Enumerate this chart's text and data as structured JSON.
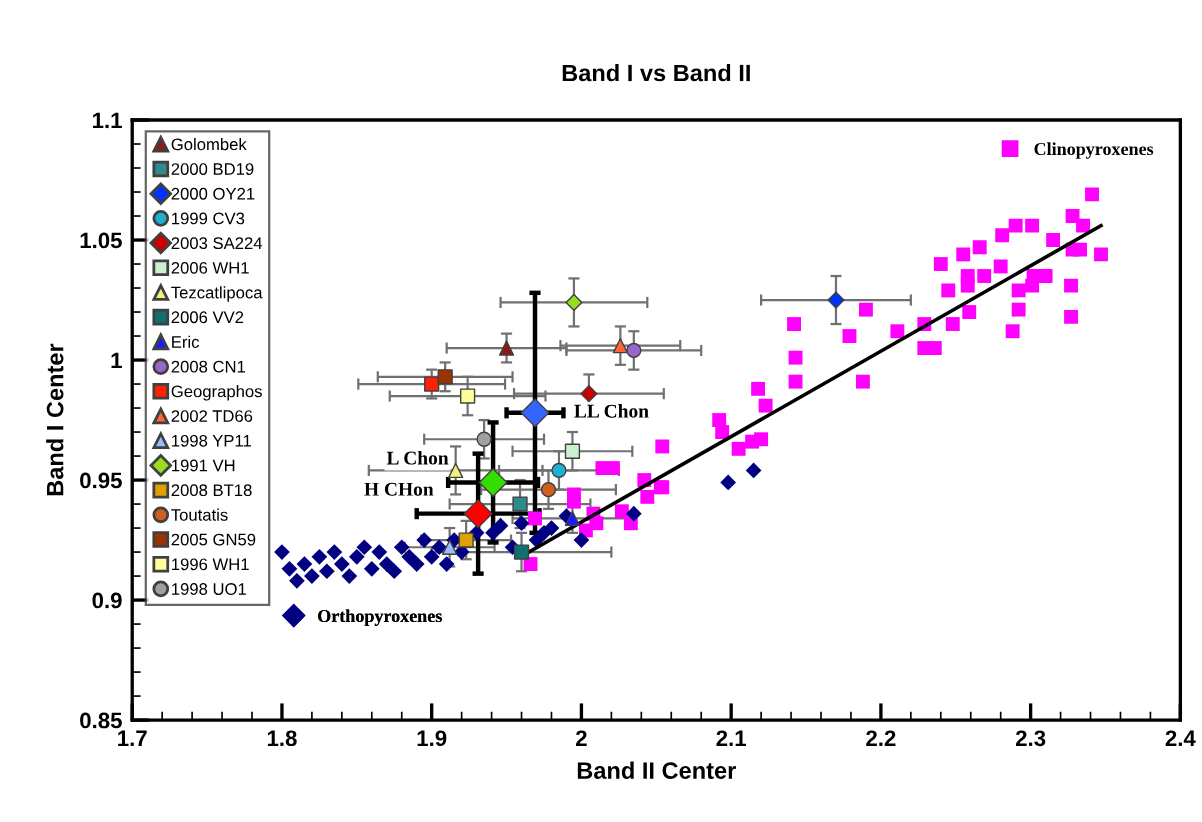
{
  "chart_data": {
    "type": "scatter",
    "title": "Band I vs Band II",
    "xlabel": "Band II Center",
    "ylabel": "Band I Center",
    "xlim": [
      1.7,
      2.4
    ],
    "xticks": [
      1.7,
      1.8,
      1.9,
      2,
      2.1,
      2.2,
      2.3,
      2.4
    ],
    "ylim": [
      0.85,
      1.1
    ],
    "yticks": [
      0.85,
      0.9,
      0.95,
      1,
      1.05,
      1.1
    ],
    "legend": "top left",
    "series": [
      {
        "name": "Golombek",
        "color": "#8b1a1a",
        "marker": "triangle",
        "x": [
          1.95
        ],
        "values": [
          1.005
        ],
        "xerrors": [
          0.04
        ],
        "errors": [
          0.006
        ]
      },
      {
        "name": "2000 BD19",
        "color": "#2e8b8b",
        "marker": "square",
        "x": [
          1.959
        ],
        "values": [
          0.94
        ],
        "xerrors": [
          0.047
        ],
        "errors": [
          0.01
        ]
      },
      {
        "name": "2000 OY21",
        "color": "#0033ff",
        "marker": "diamond",
        "x": [
          2.17
        ],
        "values": [
          1.025
        ],
        "xerrors": [
          0.05
        ],
        "errors": [
          0.01
        ]
      },
      {
        "name": "1999 CV3",
        "color": "#20b0d0",
        "marker": "circle",
        "x": [
          1.985
        ],
        "values": [
          0.954
        ],
        "xerrors": [
          0.04
        ],
        "errors": [
          0.008
        ]
      },
      {
        "name": "2003 SA224",
        "color": "#cc0000",
        "marker": "diamond",
        "x": [
          2.005
        ],
        "values": [
          0.986
        ],
        "xerrors": [
          0.05
        ],
        "errors": [
          0.008
        ]
      },
      {
        "name": "2006 WH1",
        "color": "#ccf0cc",
        "marker": "square",
        "x": [
          1.994
        ],
        "values": [
          0.962
        ],
        "xerrors": [
          0.04
        ],
        "errors": [
          0.008
        ]
      },
      {
        "name": "Tezcatlipoca",
        "color": "#f0f080",
        "marker": "triangle",
        "x": [
          1.916
        ],
        "values": [
          0.954
        ],
        "xerrors": [
          0.058
        ],
        "errors": [
          0.01
        ]
      },
      {
        "name": "2006 VV2",
        "color": "#107070",
        "marker": "square",
        "x": [
          1.96
        ],
        "values": [
          0.92
        ],
        "xerrors": [
          0.06
        ],
        "errors": [
          0.008
        ]
      },
      {
        "name": "Eric",
        "color": "#1a1aff",
        "marker": "triangle",
        "x": [
          1.994
        ],
        "values": [
          0.934
        ],
        "xerrors": [
          0.04
        ],
        "errors": [
          0.006
        ]
      },
      {
        "name": "2008 CN1",
        "color": "#9966cc",
        "marker": "circle",
        "x": [
          2.035
        ],
        "values": [
          1.004
        ],
        "xerrors": [
          0.045
        ],
        "errors": [
          0.008
        ]
      },
      {
        "name": "Geographos",
        "color": "#ff2200",
        "marker": "square",
        "x": [
          1.9
        ],
        "values": [
          0.99
        ],
        "xerrors": [
          0.049
        ],
        "errors": [
          0.006
        ]
      },
      {
        "name": "2002 TD66",
        "color": "#ff6633",
        "marker": "triangle",
        "x": [
          2.026
        ],
        "values": [
          1.006
        ],
        "xerrors": [
          0.04
        ],
        "errors": [
          0.008
        ]
      },
      {
        "name": "1998 YP11",
        "color": "#99bbff",
        "marker": "triangle",
        "x": [
          1.912
        ],
        "values": [
          0.922
        ],
        "xerrors": [
          0.03
        ],
        "errors": [
          0.008
        ]
      },
      {
        "name": "1991 VH",
        "color": "#99dd22",
        "marker": "diamond",
        "x": [
          1.995
        ],
        "values": [
          1.024
        ],
        "xerrors": [
          0.049
        ],
        "errors": [
          0.01
        ]
      },
      {
        "name": "2008 BT18",
        "color": "#e0a000",
        "marker": "square",
        "x": [
          1.923
        ],
        "values": [
          0.925
        ],
        "xerrors": [
          0.03
        ],
        "errors": [
          0.008
        ]
      },
      {
        "name": "Toutatis",
        "color": "#d06020",
        "marker": "circle",
        "x": [
          1.978
        ],
        "values": [
          0.946
        ],
        "xerrors": [
          0.045
        ],
        "errors": [
          0.008
        ]
      },
      {
        "name": "2005 GN59",
        "color": "#993300",
        "marker": "square",
        "x": [
          1.909
        ],
        "values": [
          0.993
        ],
        "xerrors": [
          0.045
        ],
        "errors": [
          0.006
        ]
      },
      {
        "name": "1996 WH1",
        "color": "#ffff99",
        "marker": "square",
        "x": [
          1.924
        ],
        "values": [
          0.985
        ],
        "xerrors": [
          0.052
        ],
        "errors": [
          0.008
        ]
      },
      {
        "name": "1998 UO1",
        "color": "#a0a0a0",
        "marker": "circle",
        "x": [
          1.935
        ],
        "values": [
          0.967
        ],
        "xerrors": [
          0.04
        ],
        "errors": [
          0.008
        ]
      },
      {
        "name": "Clinopyroxenes",
        "color": "#ff00ff",
        "marker": "square",
        "x": [
          2.341,
          2.328,
          2.335,
          2.29,
          2.301,
          2.281,
          2.315,
          2.266,
          2.255,
          2.24,
          2.28,
          2.328,
          2.333,
          2.347,
          2.258,
          2.269,
          2.258,
          2.245,
          2.302,
          2.31,
          2.301,
          2.292,
          2.327,
          2.292,
          2.259,
          2.327,
          2.248,
          2.288,
          2.229,
          2.229,
          2.236,
          2.211,
          2.19,
          2.179,
          2.142,
          2.143,
          2.143,
          2.188,
          2.118,
          2.123,
          2.092,
          2.094,
          2.105,
          2.114,
          2.12,
          2.054,
          2.054,
          2.014,
          2.021,
          2.042,
          2.053,
          2.044,
          1.995,
          1.995,
          1.969,
          2.008,
          2.01,
          2.003,
          2.027,
          2.033,
          1.966
        ],
        "values": [
          1.069,
          1.06,
          1.056,
          1.056,
          1.056,
          1.052,
          1.05,
          1.047,
          1.044,
          1.04,
          1.039,
          1.046,
          1.046,
          1.044,
          1.035,
          1.035,
          1.031,
          1.029,
          1.035,
          1.035,
          1.031,
          1.029,
          1.031,
          1.021,
          1.02,
          1.018,
          1.015,
          1.012,
          1.015,
          1.005,
          1.005,
          1.012,
          1.021,
          1.01,
          1.015,
          1.001,
          0.991,
          0.991,
          0.988,
          0.981,
          0.975,
          0.97,
          0.963,
          0.966,
          0.967,
          0.964,
          0.947,
          0.955,
          0.955,
          0.95,
          0.947,
          0.943,
          0.944,
          0.941,
          0.934,
          0.936,
          0.932,
          0.929,
          0.937,
          0.932,
          0.915
        ]
      },
      {
        "name": "Orthopyroxenes",
        "color": "#000080",
        "marker": "diamond",
        "x": [
          1.8,
          1.805,
          1.81,
          1.815,
          1.82,
          1.825,
          1.83,
          1.835,
          1.84,
          1.845,
          1.85,
          1.855,
          1.86,
          1.865,
          1.87,
          1.875,
          1.88,
          1.885,
          1.89,
          1.895,
          1.9,
          1.905,
          1.91,
          1.915,
          1.92,
          1.93,
          1.941,
          1.946,
          1.954,
          1.96,
          1.97,
          1.975,
          1.98,
          1.99,
          2.0,
          2.035,
          2.098,
          2.115
        ],
        "values": [
          0.92,
          0.913,
          0.908,
          0.915,
          0.91,
          0.918,
          0.912,
          0.92,
          0.915,
          0.91,
          0.918,
          0.922,
          0.913,
          0.92,
          0.915,
          0.912,
          0.922,
          0.918,
          0.915,
          0.925,
          0.918,
          0.922,
          0.915,
          0.925,
          0.92,
          0.928,
          0.928,
          0.931,
          0.922,
          0.932,
          0.925,
          0.928,
          0.93,
          0.935,
          0.925,
          0.936,
          0.949,
          0.954
        ]
      },
      {
        "color": "#ff0000",
        "marker": "diamond",
        "x": [
          1.931
        ],
        "values": [
          0.936
        ],
        "xerrors": [
          0.041
        ],
        "errors": [
          0.025
        ]
      },
      {
        "color": "#33dd00",
        "marker": "diamond",
        "x": [
          1.941
        ],
        "values": [
          0.949
        ],
        "xerrors": [
          0.03
        ],
        "errors": [
          0.025
        ]
      },
      {
        "color": "#3366ff",
        "marker": "diamond",
        "x": [
          1.969
        ],
        "values": [
          0.978
        ],
        "xerrors": [
          0.019
        ],
        "errors": [
          0.05
        ]
      },
      {
        "type": "line",
        "color": "#000000",
        "x": [
          1.962,
          2.347
        ],
        "values": [
          0.919,
          1.056
        ]
      }
    ],
    "annotations": [
      {
        "text": "H CHon",
        "x": 1.931,
        "y": 0.936
      },
      {
        "text": "L Chon",
        "x": 1.941,
        "y": 0.949
      },
      {
        "text": "LL Chon",
        "x": 1.969,
        "y": 0.978
      }
    ]
  }
}
